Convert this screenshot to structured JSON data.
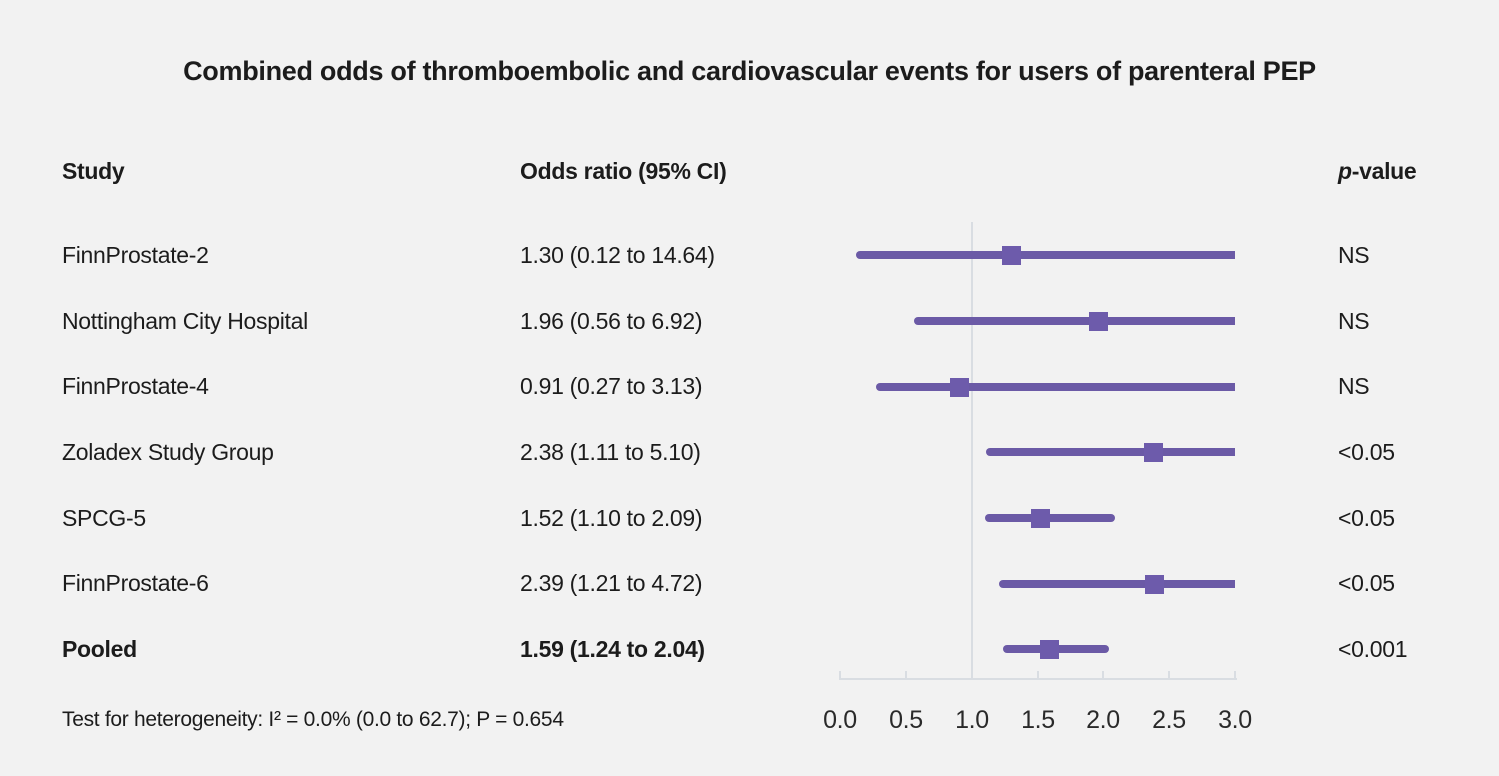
{
  "title": "Combined odds of thromboembolic and cardiovascular events for users of parenteral PEP",
  "headers": {
    "study": "Study",
    "odds_ratio": "Odds ratio (95% CI)",
    "pvalue_italic": "p",
    "pvalue_rest": "-value"
  },
  "footer": "Test for heterogeneity: I² = 0.0% (0.0 to 62.7); P = 0.654",
  "colors": {
    "background": "#f2f2f2",
    "text": "#1c1c1c",
    "ci_line": "#6b5aa6",
    "marker": "#6d5bab",
    "axis_line": "#d9dde2"
  },
  "chart_data": {
    "type": "scatter",
    "variant": "forest-plot",
    "title": "Combined odds of thromboembolic and cardiovascular events for users of parenteral PEP",
    "xlabel": "Odds ratio",
    "legend": "none",
    "grid": "off",
    "x_axis": {
      "min": 0.0,
      "max": 3.0,
      "tick_labels": [
        "0.0",
        "0.5",
        "1.0",
        "1.5",
        "2.0",
        "2.5",
        "3.0"
      ],
      "reference_line": 1.0
    },
    "rows": [
      {
        "study": "FinnProstate-2",
        "or_text": "1.30 (0.12 to 14.64)",
        "p": "NS",
        "or": 1.3,
        "ci_low": 0.12,
        "ci_high": 14.64,
        "pooled": false
      },
      {
        "study": "Nottingham City Hospital",
        "or_text": "1.96 (0.56 to 6.92)",
        "p": "NS",
        "or": 1.96,
        "ci_low": 0.56,
        "ci_high": 6.92,
        "pooled": false
      },
      {
        "study": "FinnProstate-4",
        "or_text": "0.91 (0.27 to 3.13)",
        "p": "NS",
        "or": 0.91,
        "ci_low": 0.27,
        "ci_high": 3.13,
        "pooled": false
      },
      {
        "study": "Zoladex Study Group",
        "or_text": "2.38 (1.11 to 5.10)",
        "p": "<0.05",
        "or": 2.38,
        "ci_low": 1.11,
        "ci_high": 5.1,
        "pooled": false
      },
      {
        "study": "SPCG-5",
        "or_text": "1.52 (1.10 to 2.09)",
        "p": "<0.05",
        "or": 1.52,
        "ci_low": 1.1,
        "ci_high": 2.09,
        "pooled": false
      },
      {
        "study": "FinnProstate-6",
        "or_text": "2.39 (1.21 to 4.72)",
        "p": "<0.05",
        "or": 2.39,
        "ci_low": 1.21,
        "ci_high": 4.72,
        "pooled": false
      },
      {
        "study": "Pooled",
        "or_text": "1.59 (1.24 to 2.04)",
        "p": "<0.001",
        "or": 1.59,
        "ci_low": 1.24,
        "ci_high": 2.04,
        "pooled": true
      }
    ]
  }
}
